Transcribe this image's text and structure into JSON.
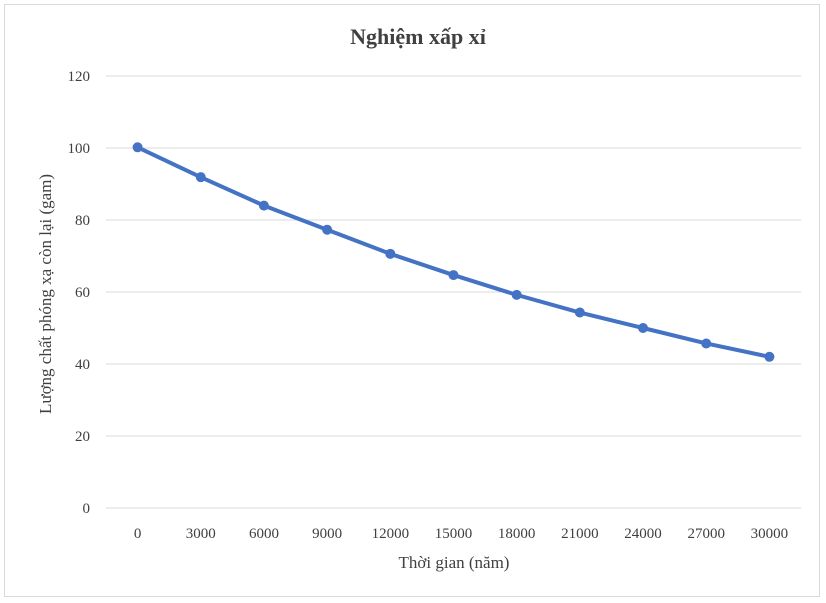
{
  "chart_data": {
    "type": "line",
    "title": "Nghiệm xấp xỉ",
    "xlabel": "Thời gian (năm)",
    "ylabel": "Lượng chất phóng xạ còn lại (gam)",
    "categories": [
      "0",
      "3000",
      "6000",
      "9000",
      "12000",
      "15000",
      "18000",
      "21000",
      "24000",
      "27000",
      "30000"
    ],
    "series": [
      {
        "values": [
          100.2,
          91.9,
          84.0,
          77.3,
          70.6,
          64.7,
          59.2,
          54.3,
          50.0,
          45.7,
          42.0
        ]
      }
    ],
    "ylim": [
      0,
      120
    ],
    "yticks": [
      0,
      20,
      40,
      60,
      80,
      100,
      120
    ],
    "grid": true,
    "legend": "none",
    "colors": {
      "series": "#4472c4",
      "grid": "#d9d9d9",
      "text": "#404040"
    }
  }
}
